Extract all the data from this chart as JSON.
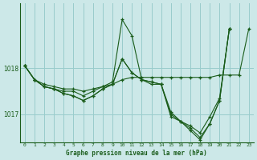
{
  "title": "Graphe pression niveau de la mer (hPa)",
  "bg_color": "#cce8e8",
  "grid_color": "#99cccc",
  "line_color": "#1a5c1a",
  "x_ticks": [
    0,
    1,
    2,
    3,
    4,
    5,
    6,
    7,
    8,
    9,
    10,
    11,
    12,
    13,
    14,
    15,
    16,
    17,
    18,
    19,
    20,
    21,
    22,
    23
  ],
  "y_ticks": [
    1017,
    1018
  ],
  "xlim": [
    -0.5,
    23.5
  ],
  "ylim": [
    1016.4,
    1019.4
  ],
  "series": [
    {
      "x": [
        0,
        1,
        2,
        3,
        4,
        5,
        6,
        7,
        8,
        9,
        10,
        11,
        12,
        13,
        14,
        15,
        16,
        17,
        18,
        19,
        20,
        21,
        22,
        23
      ],
      "y": [
        1018.05,
        1017.75,
        1017.65,
        1017.6,
        1017.55,
        1017.55,
        1017.5,
        1017.55,
        1017.6,
        1017.65,
        1017.75,
        1017.8,
        1017.8,
        1017.8,
        1017.8,
        1017.8,
        1017.8,
        1017.8,
        1017.8,
        1017.8,
        1017.85,
        1017.85,
        1017.85,
        1018.85
      ]
    },
    {
      "x": [
        0,
        1,
        2,
        3,
        4,
        5,
        6,
        7,
        8,
        9,
        10,
        11,
        12,
        13,
        14,
        15,
        16,
        17,
        18,
        19,
        20,
        21
      ],
      "y": [
        1018.05,
        1017.75,
        1017.6,
        1017.55,
        1017.5,
        1017.5,
        1017.4,
        1017.5,
        1017.6,
        1017.7,
        1019.05,
        1018.7,
        1017.75,
        1017.65,
        1017.65,
        1016.95,
        1016.85,
        1016.75,
        1016.6,
        1016.95,
        1017.35,
        1018.85
      ]
    },
    {
      "x": [
        0,
        1,
        2,
        3,
        4,
        5,
        6,
        7,
        8,
        9,
        10,
        11,
        12,
        13,
        14,
        15,
        16,
        17,
        18,
        19,
        20,
        21
      ],
      "y": [
        1018.05,
        1017.75,
        1017.6,
        1017.55,
        1017.45,
        1017.4,
        1017.3,
        1017.4,
        1017.55,
        1017.65,
        1018.2,
        1017.9,
        1017.75,
        1017.7,
        1017.65,
        1017.05,
        1016.85,
        1016.7,
        1016.5,
        1016.8,
        1017.3,
        1018.85
      ]
    },
    {
      "x": [
        0,
        1,
        2,
        3,
        4,
        5,
        6,
        7,
        8,
        9,
        10,
        11,
        12,
        13,
        14,
        15,
        16,
        17,
        18,
        19,
        20,
        21
      ],
      "y": [
        1018.05,
        1017.75,
        1017.6,
        1017.55,
        1017.45,
        1017.4,
        1017.3,
        1017.4,
        1017.55,
        1017.65,
        1018.2,
        1017.9,
        1017.75,
        1017.7,
        1017.65,
        1017.0,
        1016.85,
        1016.65,
        1016.45,
        1016.8,
        1017.3,
        1018.85
      ]
    }
  ]
}
